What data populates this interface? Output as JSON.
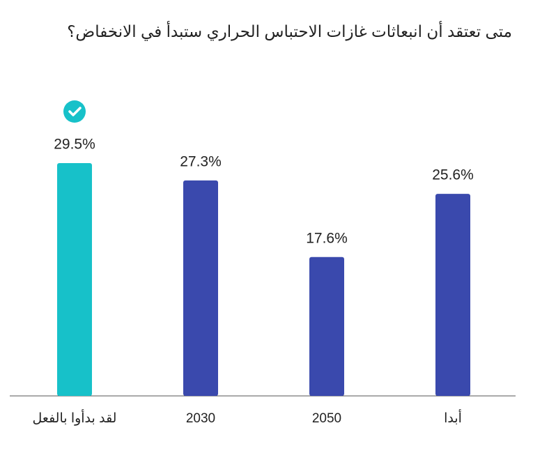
{
  "chart_data": {
    "type": "bar",
    "title": "متى تعتقد أن انبعاثات غازات الاحتباس الحراري ستبدأ في الانخفاض؟",
    "categories": [
      "لقد بدأوا بالفعل",
      "2030",
      "2050",
      "أبدا"
    ],
    "values": [
      29.5,
      27.3,
      17.6,
      25.6
    ],
    "value_labels": [
      "29.5%",
      "27.3%",
      "17.6%",
      "25.6%"
    ],
    "colors": [
      "#17c1c9",
      "#3a49ad",
      "#3a49ad",
      "#3a49ad"
    ]
  }
}
